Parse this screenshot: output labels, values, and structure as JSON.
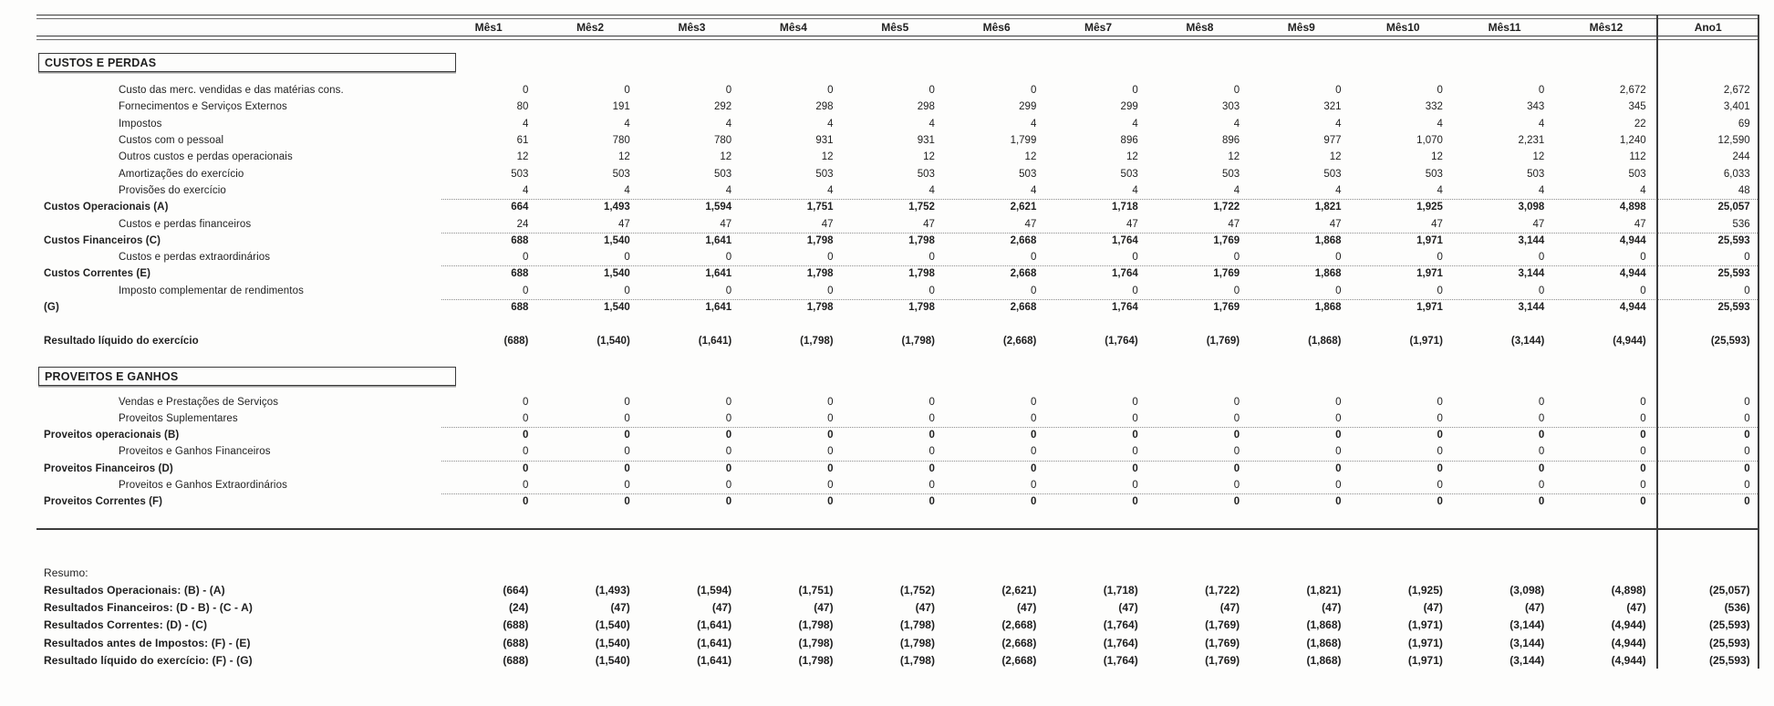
{
  "header": {
    "columns": [
      "Mês1",
      "Mês2",
      "Mês3",
      "Mês4",
      "Mês5",
      "Mês6",
      "Mês7",
      "Mês8",
      "Mês9",
      "Mês10",
      "Mês11",
      "Mês12",
      "Ano1"
    ]
  },
  "sections": {
    "custos_title": "CUSTOS E PERDAS",
    "proveitos_title": "PROVEITOS E GANHOS"
  },
  "resumo_label": "Resumo:",
  "custos_rows": [
    {
      "label": "Custo das merc. vendidas e das matérias cons.",
      "style": "item",
      "dashed": false,
      "values": [
        "0",
        "0",
        "0",
        "0",
        "0",
        "0",
        "0",
        "0",
        "0",
        "0",
        "0",
        "2,672",
        "2,672"
      ]
    },
    {
      "label": "Fornecimentos e Serviços Externos",
      "style": "item",
      "dashed": false,
      "values": [
        "80",
        "191",
        "292",
        "298",
        "298",
        "299",
        "299",
        "303",
        "321",
        "332",
        "343",
        "345",
        "3,401"
      ]
    },
    {
      "label": "Impostos",
      "style": "item",
      "dashed": false,
      "values": [
        "4",
        "4",
        "4",
        "4",
        "4",
        "4",
        "4",
        "4",
        "4",
        "4",
        "4",
        "22",
        "69"
      ]
    },
    {
      "label": "Custos com o pessoal",
      "style": "item",
      "dashed": false,
      "values": [
        "61",
        "780",
        "780",
        "931",
        "931",
        "1,799",
        "896",
        "896",
        "977",
        "1,070",
        "2,231",
        "1,240",
        "12,590"
      ]
    },
    {
      "label": "Outros custos e perdas operacionais",
      "style": "item",
      "dashed": false,
      "values": [
        "12",
        "12",
        "12",
        "12",
        "12",
        "12",
        "12",
        "12",
        "12",
        "12",
        "12",
        "112",
        "244"
      ]
    },
    {
      "label": "Amortizações do exercício",
      "style": "item",
      "dashed": false,
      "values": [
        "503",
        "503",
        "503",
        "503",
        "503",
        "503",
        "503",
        "503",
        "503",
        "503",
        "503",
        "503",
        "6,033"
      ]
    },
    {
      "label": "Provisões do exercício",
      "style": "item",
      "dashed": false,
      "values": [
        "4",
        "4",
        "4",
        "4",
        "4",
        "4",
        "4",
        "4",
        "4",
        "4",
        "4",
        "4",
        "48"
      ]
    },
    {
      "label": "Custos Operacionais (A)",
      "style": "total",
      "dashed": true,
      "values": [
        "664",
        "1,493",
        "1,594",
        "1,751",
        "1,752",
        "2,621",
        "1,718",
        "1,722",
        "1,821",
        "1,925",
        "3,098",
        "4,898",
        "25,057"
      ]
    },
    {
      "label": "Custos e perdas financeiros",
      "style": "item",
      "dashed": false,
      "values": [
        "24",
        "47",
        "47",
        "47",
        "47",
        "47",
        "47",
        "47",
        "47",
        "47",
        "47",
        "47",
        "536"
      ]
    },
    {
      "label": "Custos Financeiros (C)",
      "style": "total",
      "dashed": true,
      "values": [
        "688",
        "1,540",
        "1,641",
        "1,798",
        "1,798",
        "2,668",
        "1,764",
        "1,769",
        "1,868",
        "1,971",
        "3,144",
        "4,944",
        "25,593"
      ]
    },
    {
      "label": "Custos e perdas extraordinários",
      "style": "item",
      "dashed": false,
      "values": [
        "0",
        "0",
        "0",
        "0",
        "0",
        "0",
        "0",
        "0",
        "0",
        "0",
        "0",
        "0",
        "0"
      ]
    },
    {
      "label": "Custos Correntes (E)",
      "style": "total",
      "dashed": true,
      "values": [
        "688",
        "1,540",
        "1,641",
        "1,798",
        "1,798",
        "2,668",
        "1,764",
        "1,769",
        "1,868",
        "1,971",
        "3,144",
        "4,944",
        "25,593"
      ]
    },
    {
      "label": "Imposto complementar de rendimentos",
      "style": "item",
      "dashed": false,
      "values": [
        "0",
        "0",
        "0",
        "0",
        "0",
        "0",
        "0",
        "0",
        "0",
        "0",
        "0",
        "0",
        "0"
      ]
    },
    {
      "label": "(G)",
      "style": "total",
      "dashed": true,
      "values": [
        "688",
        "1,540",
        "1,641",
        "1,798",
        "1,798",
        "2,668",
        "1,764",
        "1,769",
        "1,868",
        "1,971",
        "3,144",
        "4,944",
        "25,593"
      ]
    }
  ],
  "net_rows": [
    {
      "label": "Resultado líquido do exercício",
      "style": "net",
      "dashed": false,
      "values": [
        "(688)",
        "(1,540)",
        "(1,641)",
        "(1,798)",
        "(1,798)",
        "(2,668)",
        "(1,764)",
        "(1,769)",
        "(1,868)",
        "(1,971)",
        "(3,144)",
        "(4,944)",
        "(25,593)"
      ]
    }
  ],
  "proveitos_rows": [
    {
      "label": "Vendas e Prestações de Serviços",
      "style": "item",
      "dashed": false,
      "values": [
        "0",
        "0",
        "0",
        "0",
        "0",
        "0",
        "0",
        "0",
        "0",
        "0",
        "0",
        "0",
        "0"
      ]
    },
    {
      "label": "Proveitos Suplementares",
      "style": "item",
      "dashed": false,
      "values": [
        "0",
        "0",
        "0",
        "0",
        "0",
        "0",
        "0",
        "0",
        "0",
        "0",
        "0",
        "0",
        "0"
      ]
    },
    {
      "label": "Proveitos operacionais (B)",
      "style": "total",
      "dashed": true,
      "values": [
        "0",
        "0",
        "0",
        "0",
        "0",
        "0",
        "0",
        "0",
        "0",
        "0",
        "0",
        "0",
        "0"
      ]
    },
    {
      "label": "Proveitos e Ganhos Financeiros",
      "style": "item",
      "dashed": false,
      "values": [
        "0",
        "0",
        "0",
        "0",
        "0",
        "0",
        "0",
        "0",
        "0",
        "0",
        "0",
        "0",
        "0"
      ]
    },
    {
      "label": "Proveitos Financeiros (D)",
      "style": "total",
      "dashed": true,
      "values": [
        "0",
        "0",
        "0",
        "0",
        "0",
        "0",
        "0",
        "0",
        "0",
        "0",
        "0",
        "0",
        "0"
      ]
    },
    {
      "label": "Proveitos e Ganhos Extraordinários",
      "style": "item",
      "dashed": false,
      "values": [
        "0",
        "0",
        "0",
        "0",
        "0",
        "0",
        "0",
        "0",
        "0",
        "0",
        "0",
        "0",
        "0"
      ]
    },
    {
      "label": "Proveitos Correntes (F)",
      "style": "total",
      "dashed": true,
      "values": [
        "0",
        "0",
        "0",
        "0",
        "0",
        "0",
        "0",
        "0",
        "0",
        "0",
        "0",
        "0",
        "0"
      ]
    }
  ],
  "resumo_rows": [
    {
      "label": "Resultados Operacionais: (B) - (A)",
      "style": "summary",
      "dashed": false,
      "values": [
        "(664)",
        "(1,493)",
        "(1,594)",
        "(1,751)",
        "(1,752)",
        "(2,621)",
        "(1,718)",
        "(1,722)",
        "(1,821)",
        "(1,925)",
        "(3,098)",
        "(4,898)",
        "(25,057)"
      ]
    },
    {
      "label": "Resultados Financeiros: (D - B) - (C - A)",
      "style": "summary",
      "dashed": false,
      "values": [
        "(24)",
        "(47)",
        "(47)",
        "(47)",
        "(47)",
        "(47)",
        "(47)",
        "(47)",
        "(47)",
        "(47)",
        "(47)",
        "(47)",
        "(536)"
      ]
    },
    {
      "label": "Resultados Correntes: (D) - (C)",
      "style": "summary",
      "dashed": false,
      "values": [
        "(688)",
        "(1,540)",
        "(1,641)",
        "(1,798)",
        "(1,798)",
        "(2,668)",
        "(1,764)",
        "(1,769)",
        "(1,868)",
        "(1,971)",
        "(3,144)",
        "(4,944)",
        "(25,593)"
      ]
    },
    {
      "label": "Resultados antes de Impostos: (F) - (E)",
      "style": "summary",
      "dashed": false,
      "values": [
        "(688)",
        "(1,540)",
        "(1,641)",
        "(1,798)",
        "(1,798)",
        "(2,668)",
        "(1,764)",
        "(1,769)",
        "(1,868)",
        "(1,971)",
        "(3,144)",
        "(4,944)",
        "(25,593)"
      ]
    },
    {
      "label": "Resultado líquido do exercício: (F) - (G)",
      "style": "summary",
      "dashed": false,
      "values": [
        "(688)",
        "(1,540)",
        "(1,641)",
        "(1,798)",
        "(1,798)",
        "(2,668)",
        "(1,764)",
        "(1,769)",
        "(1,868)",
        "(1,971)",
        "(3,144)",
        "(4,944)",
        "(25,593)"
      ]
    }
  ]
}
